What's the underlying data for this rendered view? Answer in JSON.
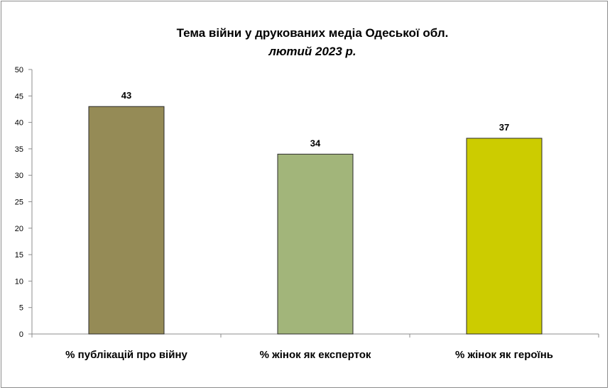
{
  "chart_data": {
    "type": "bar",
    "title": "Тема війни у друкованих  медіа Одеської обл.",
    "subtitle": "лютий 2023 р.",
    "categories": [
      "% публікацій про війну",
      "% жінок як експерток",
      "% жінок як героїнь"
    ],
    "values": [
      43,
      34,
      37
    ],
    "data_labels": [
      "43",
      "34",
      "37"
    ],
    "colors": [
      "#958b56",
      "#a2b57a",
      "#cccc00"
    ],
    "ylim": [
      0,
      50
    ],
    "yticks": [
      0,
      5,
      10,
      15,
      20,
      25,
      30,
      35,
      40,
      45,
      50
    ],
    "xlabel": "",
    "ylabel": "",
    "grid": false,
    "legend": "none"
  }
}
